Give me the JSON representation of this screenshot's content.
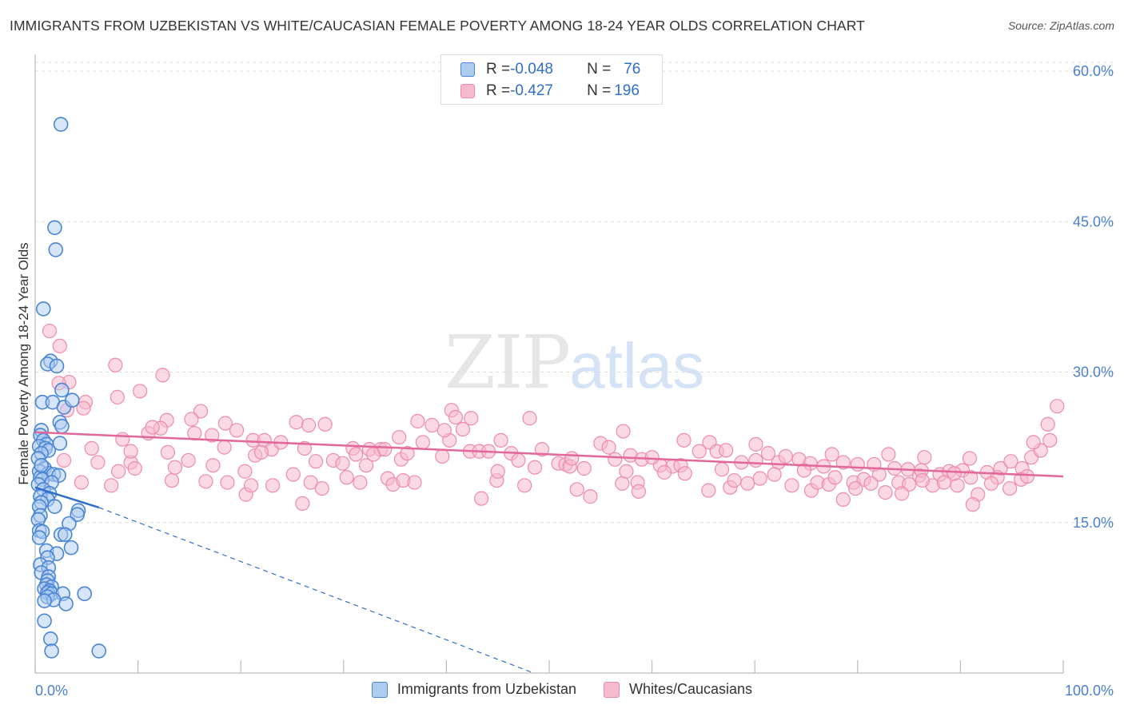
{
  "title": "IMMIGRANTS FROM UZBEKISTAN VS WHITE/CAUCASIAN FEMALE POVERTY AMONG 18-24 YEAR OLDS CORRELATION CHART",
  "source": "Source: ZipAtlas.com",
  "watermark": {
    "zip": "ZIP",
    "atlas": "atlas"
  },
  "legend": {
    "rows": [
      {
        "r_label": "R = ",
        "r_value": "-0.048",
        "n_label": "N = ",
        "n_value": "76"
      },
      {
        "r_label": "R = ",
        "r_value": "-0.427",
        "n_label": "N = ",
        "n_value": "196"
      }
    ]
  },
  "bottom_legend": [
    "Immigrants from Uzbekistan",
    "Whites/Caucasians"
  ],
  "colors": {
    "blue_fill": "#aecbf0",
    "blue_stroke": "#4a85d6",
    "blue_line": "#2f6fc9",
    "pink_fill": "#f6b9cd",
    "pink_stroke": "#ee8aab",
    "pink_line": "#e2679a",
    "tick": "#4a7fd0",
    "grid": "#dddddd"
  },
  "chart_data": {
    "type": "scatter",
    "title": "IMMIGRANTS FROM UZBEKISTAN VS WHITE/CAUCASIAN FEMALE POVERTY AMONG 18-24 YEAR OLDS CORRELATION CHART",
    "xlabel": "",
    "ylabel": "Female Poverty Among 18-24 Year Olds",
    "xlim": [
      0,
      100
    ],
    "ylim": [
      0,
      60
    ],
    "x_tick_labels": [
      "0.0%",
      "100.0%"
    ],
    "y_ticks": [
      15,
      30,
      45,
      60
    ],
    "y_tick_labels": [
      "15.0%",
      "30.0%",
      "45.0%",
      "60.0%"
    ],
    "grid": "horizontal dashed",
    "legend_position": "top-center",
    "series": [
      {
        "name": "Immigrants from Uzbekistan",
        "R": -0.048,
        "N": 76,
        "trend": {
          "x": [
            0,
            6.2
          ],
          "y": [
            18.5,
            16.5
          ]
        },
        "trend_extension": {
          "x": [
            6.2,
            48.5
          ],
          "y": [
            16.5,
            0
          ]
        },
        "points": [
          [
            2.5,
            54.7
          ],
          [
            1.9,
            44.4
          ],
          [
            2.0,
            42.2
          ],
          [
            0.8,
            36.3
          ],
          [
            1.5,
            31.1
          ],
          [
            1.2,
            30.8
          ],
          [
            2.1,
            30.6
          ],
          [
            2.6,
            28.2
          ],
          [
            0.7,
            27.0
          ],
          [
            1.7,
            27.0
          ],
          [
            2.8,
            26.5
          ],
          [
            3.6,
            27.2
          ],
          [
            2.4,
            25.0
          ],
          [
            2.6,
            24.6
          ],
          [
            0.6,
            24.2
          ],
          [
            0.5,
            23.7
          ],
          [
            0.8,
            23.2
          ],
          [
            1.1,
            22.8
          ],
          [
            2.4,
            22.9
          ],
          [
            0.4,
            22.6
          ],
          [
            1.0,
            22.4
          ],
          [
            1.3,
            22.2
          ],
          [
            0.6,
            21.9
          ],
          [
            0.3,
            21.4
          ],
          [
            0.9,
            20.4
          ],
          [
            0.4,
            20.1
          ],
          [
            1.3,
            19.9
          ],
          [
            1.8,
            19.8
          ],
          [
            2.3,
            19.7
          ],
          [
            0.5,
            19.5
          ],
          [
            0.7,
            19.3
          ],
          [
            1.6,
            19.0
          ],
          [
            0.3,
            18.8
          ],
          [
            0.8,
            18.3
          ],
          [
            1.4,
            17.9
          ],
          [
            0.5,
            17.6
          ],
          [
            1.2,
            17.3
          ],
          [
            0.6,
            17.0
          ],
          [
            0.4,
            16.6
          ],
          [
            1.9,
            16.6
          ],
          [
            4.2,
            16.2
          ],
          [
            4.1,
            15.8
          ],
          [
            0.5,
            15.7
          ],
          [
            0.3,
            15.3
          ],
          [
            3.3,
            14.9
          ],
          [
            0.4,
            14.2
          ],
          [
            0.7,
            14.1
          ],
          [
            2.5,
            13.8
          ],
          [
            2.9,
            13.8
          ],
          [
            0.4,
            13.5
          ],
          [
            3.5,
            12.5
          ],
          [
            1.1,
            12.2
          ],
          [
            2.1,
            11.9
          ],
          [
            1.2,
            11.5
          ],
          [
            0.5,
            10.8
          ],
          [
            1.3,
            10.5
          ],
          [
            0.6,
            10.0
          ],
          [
            1.3,
            9.6
          ],
          [
            1.2,
            9.2
          ],
          [
            1.1,
            8.8
          ],
          [
            1.6,
            8.6
          ],
          [
            0.9,
            8.4
          ],
          [
            1.4,
            8.2
          ],
          [
            1.2,
            8.0
          ],
          [
            1.6,
            7.9
          ],
          [
            2.7,
            7.9
          ],
          [
            4.8,
            7.9
          ],
          [
            1.2,
            7.6
          ],
          [
            1.8,
            7.3
          ],
          [
            0.9,
            7.2
          ],
          [
            3.0,
            6.9
          ],
          [
            0.9,
            5.2
          ],
          [
            1.5,
            3.4
          ],
          [
            1.6,
            2.2
          ],
          [
            6.2,
            2.2
          ],
          [
            0.6,
            20.7
          ]
        ]
      },
      {
        "name": "Whites/Caucasians",
        "R": -0.427,
        "N": 196,
        "trend": {
          "x": [
            0,
            100
          ],
          "y": [
            24.0,
            19.6
          ]
        },
        "points": [
          [
            1.4,
            34.1
          ],
          [
            2.4,
            32.6
          ],
          [
            7.8,
            30.7
          ],
          [
            12.4,
            29.7
          ],
          [
            3.3,
            29.0
          ],
          [
            2.3,
            28.9
          ],
          [
            10.2,
            28.1
          ],
          [
            4.9,
            27.0
          ],
          [
            8.0,
            27.5
          ],
          [
            3.1,
            26.2
          ],
          [
            4.7,
            26.4
          ],
          [
            16.1,
            26.1
          ],
          [
            12.8,
            25.2
          ],
          [
            15.2,
            25.3
          ],
          [
            8.5,
            23.3
          ],
          [
            11.0,
            23.9
          ],
          [
            12.2,
            24.4
          ],
          [
            9.3,
            21.0
          ],
          [
            11.4,
            24.5
          ],
          [
            15.5,
            23.9
          ],
          [
            17.2,
            23.7
          ],
          [
            18.5,
            24.9
          ],
          [
            19.6,
            24.2
          ],
          [
            21.2,
            23.2
          ],
          [
            22.3,
            23.2
          ],
          [
            23.0,
            22.3
          ],
          [
            25.4,
            25.0
          ],
          [
            26.6,
            24.7
          ],
          [
            28.2,
            24.8
          ],
          [
            30.9,
            22.4
          ],
          [
            32.5,
            22.3
          ],
          [
            33.6,
            22.3
          ],
          [
            35.4,
            23.5
          ],
          [
            37.2,
            25.1
          ],
          [
            38.6,
            24.7
          ],
          [
            40.5,
            26.2
          ],
          [
            40.9,
            25.5
          ],
          [
            41.6,
            24.3
          ],
          [
            42.4,
            25.4
          ],
          [
            37.7,
            23.0
          ],
          [
            5.5,
            22.4
          ],
          [
            6.1,
            21.0
          ],
          [
            8.1,
            20.1
          ],
          [
            9.3,
            22.1
          ],
          [
            12.9,
            22.0
          ],
          [
            14.9,
            21.2
          ],
          [
            17.3,
            20.7
          ],
          [
            18.4,
            22.5
          ],
          [
            20.4,
            20.1
          ],
          [
            21.4,
            21.7
          ],
          [
            23.9,
            23.0
          ],
          [
            26.2,
            22.4
          ],
          [
            27.3,
            21.1
          ],
          [
            29.0,
            21.2
          ],
          [
            29.9,
            20.9
          ],
          [
            32.2,
            20.7
          ],
          [
            32.9,
            21.8
          ],
          [
            34.0,
            22.3
          ],
          [
            35.6,
            21.3
          ],
          [
            36.2,
            21.9
          ],
          [
            39.6,
            21.6
          ],
          [
            40.3,
            23.2
          ],
          [
            42.3,
            22.1
          ],
          [
            43.2,
            22.1
          ],
          [
            44.1,
            22.1
          ],
          [
            45.3,
            23.2
          ],
          [
            46.3,
            21.9
          ],
          [
            47.0,
            21.2
          ],
          [
            48.6,
            20.5
          ],
          [
            49.3,
            22.3
          ],
          [
            50.9,
            20.9
          ],
          [
            51.6,
            20.8
          ],
          [
            52.0,
            20.6
          ],
          [
            53.4,
            20.4
          ],
          [
            55.0,
            22.9
          ],
          [
            55.8,
            22.5
          ],
          [
            56.4,
            21.3
          ],
          [
            57.9,
            21.7
          ],
          [
            59.0,
            21.3
          ],
          [
            60.8,
            20.7
          ],
          [
            62.0,
            20.6
          ],
          [
            62.8,
            20.7
          ],
          [
            64.6,
            22.1
          ],
          [
            65.6,
            23.0
          ],
          [
            66.3,
            22.1
          ],
          [
            67.2,
            22.2
          ],
          [
            68.7,
            21.0
          ],
          [
            70.1,
            21.2
          ],
          [
            71.3,
            21.9
          ],
          [
            72.3,
            21.0
          ],
          [
            73.0,
            21.6
          ],
          [
            74.3,
            21.3
          ],
          [
            75.4,
            20.9
          ],
          [
            76.7,
            20.6
          ],
          [
            77.5,
            21.8
          ],
          [
            78.6,
            21.0
          ],
          [
            80.0,
            20.8
          ],
          [
            81.6,
            20.8
          ],
          [
            82.1,
            19.8
          ],
          [
            83.6,
            20.4
          ],
          [
            84.9,
            20.3
          ],
          [
            86.0,
            19.7
          ],
          [
            86.5,
            21.5
          ],
          [
            88.0,
            19.8
          ],
          [
            88.9,
            20.1
          ],
          [
            90.2,
            20.2
          ],
          [
            91.0,
            19.5
          ],
          [
            92.6,
            20.0
          ],
          [
            93.9,
            20.4
          ],
          [
            94.9,
            21.1
          ],
          [
            96.0,
            20.4
          ],
          [
            96.9,
            21.5
          ],
          [
            97.8,
            22.2
          ],
          [
            2.8,
            21.2
          ],
          [
            4.5,
            19.0
          ],
          [
            7.4,
            18.7
          ],
          [
            9.7,
            20.4
          ],
          [
            13.3,
            19.2
          ],
          [
            16.6,
            19.1
          ],
          [
            18.7,
            19.0
          ],
          [
            20.5,
            17.8
          ],
          [
            21.0,
            18.7
          ],
          [
            23.1,
            18.7
          ],
          [
            25.1,
            19.8
          ],
          [
            26.0,
            16.9
          ],
          [
            26.8,
            19.0
          ],
          [
            27.9,
            18.4
          ],
          [
            30.3,
            19.5
          ],
          [
            31.6,
            19.0
          ],
          [
            34.3,
            19.4
          ],
          [
            34.8,
            18.8
          ],
          [
            35.8,
            19.2
          ],
          [
            36.9,
            19.0
          ],
          [
            44.9,
            19.2
          ],
          [
            47.6,
            18.7
          ],
          [
            52.7,
            18.3
          ],
          [
            54.0,
            17.6
          ],
          [
            57.1,
            18.9
          ],
          [
            57.5,
            20.1
          ],
          [
            58.6,
            19.0
          ],
          [
            61.2,
            20.0
          ],
          [
            63.2,
            19.9
          ],
          [
            65.5,
            18.2
          ],
          [
            67.6,
            18.5
          ],
          [
            68.0,
            19.2
          ],
          [
            69.3,
            18.9
          ],
          [
            70.5,
            19.4
          ],
          [
            71.9,
            19.8
          ],
          [
            73.6,
            18.7
          ],
          [
            75.5,
            18.2
          ],
          [
            76.1,
            19.0
          ],
          [
            77.2,
            18.8
          ],
          [
            78.6,
            17.3
          ],
          [
            79.6,
            19.0
          ],
          [
            80.6,
            19.3
          ],
          [
            81.3,
            18.9
          ],
          [
            82.7,
            18.0
          ],
          [
            84.0,
            19.0
          ],
          [
            85.0,
            18.8
          ],
          [
            86.2,
            20.2
          ],
          [
            87.3,
            18.7
          ],
          [
            88.4,
            19.0
          ],
          [
            89.7,
            18.7
          ],
          [
            91.7,
            17.8
          ],
          [
            93.6,
            19.5
          ],
          [
            94.8,
            18.4
          ],
          [
            95.9,
            19.3
          ],
          [
            96.5,
            19.6
          ],
          [
            99.4,
            26.6
          ],
          [
            98.5,
            24.8
          ],
          [
            98.7,
            23.2
          ],
          [
            97.1,
            23.0
          ],
          [
            39.8,
            24.2
          ],
          [
            48.1,
            25.4
          ],
          [
            57.2,
            24.1
          ],
          [
            63.1,
            23.2
          ],
          [
            70.1,
            22.8
          ],
          [
            83.0,
            21.8
          ],
          [
            90.9,
            21.4
          ],
          [
            86.3,
            19.2
          ],
          [
            43.4,
            17.4
          ],
          [
            58.7,
            18.1
          ],
          [
            79.8,
            18.4
          ],
          [
            91.2,
            16.8
          ],
          [
            22.0,
            22.0
          ],
          [
            45.0,
            20.1
          ],
          [
            60.0,
            21.5
          ],
          [
            74.8,
            20.2
          ],
          [
            84.3,
            17.9
          ],
          [
            93.0,
            18.9
          ],
          [
            31.2,
            21.8
          ],
          [
            66.8,
            20.3
          ],
          [
            77.8,
            19.5
          ],
          [
            89.4,
            19.9
          ],
          [
            52.2,
            21.4
          ],
          [
            13.6,
            20.5
          ]
        ]
      }
    ]
  }
}
